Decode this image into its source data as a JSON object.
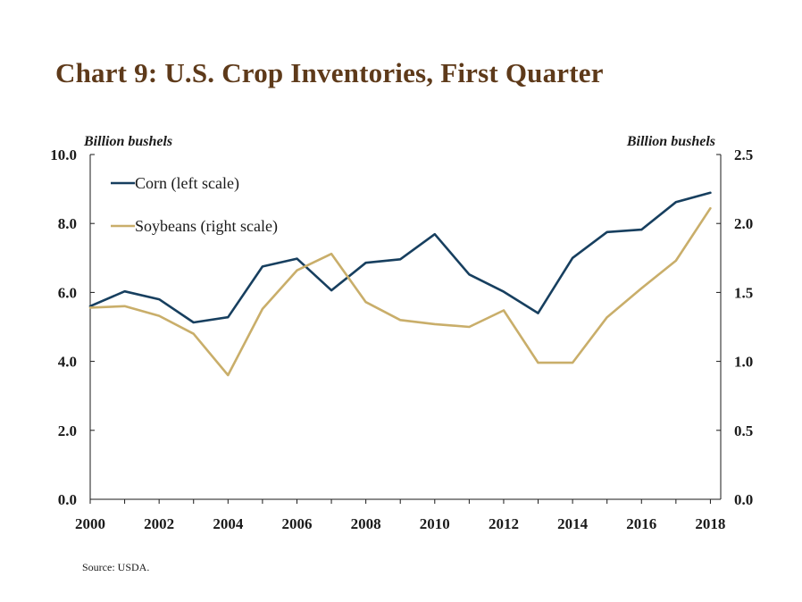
{
  "title": "Chart 9: U.S. Crop Inventories, First Quarter",
  "left_unit": "Billion bushels",
  "right_unit": "Billion bushels",
  "source": "Source: USDA.",
  "chart_data": {
    "type": "line",
    "title": "Chart 9: U.S. Crop Inventories, First Quarter",
    "xlim": [
      2000,
      2018.3
    ],
    "x_ticks": [
      2000,
      2002,
      2004,
      2006,
      2008,
      2010,
      2012,
      2014,
      2016,
      2018
    ],
    "y_left": {
      "label": "Billion bushels",
      "lim": [
        0,
        10
      ],
      "ticks": [
        "0.0",
        "2.0",
        "4.0",
        "6.0",
        "8.0",
        "10.0"
      ]
    },
    "y_right": {
      "label": "Billion bushels",
      "lim": [
        0,
        2.5
      ],
      "ticks": [
        "0.0",
        "0.5",
        "1.0",
        "1.5",
        "2.0",
        "2.5"
      ]
    },
    "legend_placement": "top-left",
    "grid": false,
    "series": [
      {
        "name": "Corn (left scale)",
        "axis": "left",
        "color": "#173f5f",
        "x": [
          2000,
          2001,
          2002,
          2003,
          2004,
          2005,
          2006,
          2007,
          2008,
          2009,
          2010,
          2011,
          2012,
          2013,
          2014,
          2015,
          2016,
          2017,
          2018
        ],
        "values": [
          5.6,
          6.03,
          5.8,
          5.13,
          5.28,
          6.75,
          6.98,
          6.06,
          6.86,
          6.96,
          7.69,
          6.52,
          6.02,
          5.4,
          7.0,
          7.75,
          7.82,
          8.62,
          8.89
        ]
      },
      {
        "name": "Soybeans (right scale)",
        "axis": "right",
        "color": "#c9ae6a",
        "x": [
          2000,
          2001,
          2002,
          2003,
          2004,
          2005,
          2006,
          2007,
          2008,
          2009,
          2010,
          2011,
          2012,
          2013,
          2014,
          2015,
          2016,
          2017,
          2018
        ],
        "values": [
          1.39,
          1.4,
          1.33,
          1.2,
          0.9,
          1.38,
          1.66,
          1.78,
          1.43,
          1.3,
          1.27,
          1.25,
          1.37,
          0.99,
          0.99,
          1.32,
          1.53,
          1.73,
          2.11
        ]
      }
    ]
  }
}
